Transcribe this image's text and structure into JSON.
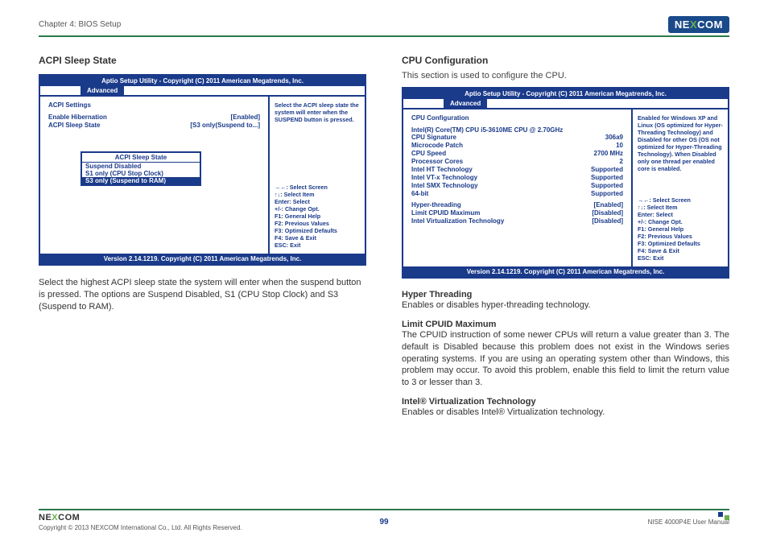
{
  "header": {
    "chapter": "Chapter 4: BIOS Setup",
    "logo_brand": "NE",
    "logo_x": "X",
    "logo_brand2": "COM"
  },
  "left": {
    "title": "ACPI Sleep State",
    "bios": {
      "title": "Aptio Setup Utility - Copyright (C) 2011 American Megatrends, Inc.",
      "tab": "Advanced",
      "heading": "ACPI Settings",
      "rows": [
        {
          "label": "Enable Hibernation",
          "value": "[Enabled]"
        },
        {
          "label": "ACPI Sleep State",
          "value": "[S3 only(Suspend to...]"
        }
      ],
      "right_top": "Select the ACPI sleep state the system will enter when the SUSPEND button is pressed.",
      "popup": {
        "title": "ACPI Sleep State",
        "items": [
          "Suspend Disabled",
          "S1 only (CPU Stop Clock)"
        ],
        "selected": "S3 only (Suspend to RAM)"
      },
      "help": [
        "→←: Select Screen",
        "↑↓: Select Item",
        "Enter: Select",
        "+/-: Change Opt.",
        "F1: General Help",
        "F2: Previous Values",
        "F3: Optimized Defaults",
        "F4: Save & Exit",
        "ESC: Exit"
      ],
      "footer": "Version 2.14.1219. Copyright (C) 2011 American Megatrends, Inc."
    },
    "body": "Select the highest ACPI sleep state the system will enter when the suspend button is pressed. The options are Suspend Disabled, S1 (CPU Stop Clock) and S3 (Suspend to RAM)."
  },
  "right": {
    "title": "CPU Configuration",
    "intro": "This section is used to configure the CPU.",
    "bios": {
      "title": "Aptio Setup Utility - Copyright (C) 2011 American Megatrends, Inc.",
      "tab": "Advanced",
      "heading": "CPU Configuration",
      "cpu_line": "Intel(R) Core(TM) CPU i5-3610ME CPU @ 2.70GHz",
      "rows": [
        {
          "label": "CPU Signature",
          "value": "306a9"
        },
        {
          "label": "Microcode Patch",
          "value": "10"
        },
        {
          "label": "CPU Speed",
          "value": "2700 MHz"
        },
        {
          "label": "Processor Cores",
          "value": "2"
        },
        {
          "label": "Intel HT Technology",
          "value": "Supported"
        },
        {
          "label": "Intel VT-x Technology",
          "value": "Supported"
        },
        {
          "label": "Intel SMX Technology",
          "value": "Supported"
        },
        {
          "label": "64-bit",
          "value": "Supported"
        }
      ],
      "rows2": [
        {
          "label": "Hyper-threading",
          "value": "[Enabled]"
        },
        {
          "label": "Limit CPUID Maximum",
          "value": "[Disabled]"
        },
        {
          "label": "Intel Virtualization Technology",
          "value": "[Disabled]"
        }
      ],
      "right_top": "Enabled for Windows XP and Linux (OS optimized for Hyper-Threading Technology) and Disabled for other OS (OS not optimized for Hyper-Threading Technology). When Disabled only one thread per enabled core is enabled.",
      "help": [
        "→←: Select Screen",
        "↑↓: Select Item",
        "Enter: Select",
        "+/-: Change Opt.",
        "F1: General Help",
        "F2: Previous Values",
        "F3: Optimized Defaults",
        "F4: Save & Exit",
        "ESC: Exit"
      ],
      "footer": "Version 2.14.1219. Copyright (C) 2011 American Megatrends, Inc."
    },
    "sections": [
      {
        "h": "Hyper Threading",
        "p": "Enables or disables hyper-threading technology."
      },
      {
        "h": "Limit CPUID Maximum",
        "p": "The CPUID instruction of some newer CPUs will return a value greater than 3. The default is Disabled because this problem does not exist in the Windows series operating systems. If you are using an operating system other than Windows, this problem may occur. To avoid this problem, enable this field to limit the return value to 3 or lesser than 3."
      },
      {
        "h": "Intel® Virtualization Technology",
        "p": "Enables or disables Intel® Virtualization technology."
      }
    ]
  },
  "footer": {
    "copyright": "Copyright © 2013 NEXCOM International Co., Ltd. All Rights Reserved.",
    "page": "99",
    "manual": "NISE 4000P4E User Manual"
  }
}
